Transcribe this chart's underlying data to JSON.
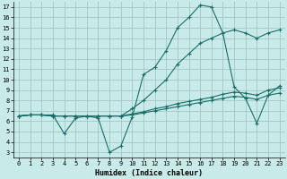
{
  "xlabel": "Humidex (Indice chaleur)",
  "xlim": [
    -0.5,
    23.5
  ],
  "ylim": [
    2.5,
    17.5
  ],
  "yticks": [
    3,
    4,
    5,
    6,
    7,
    8,
    9,
    10,
    11,
    12,
    13,
    14,
    15,
    16,
    17
  ],
  "xticks": [
    0,
    1,
    2,
    3,
    4,
    5,
    6,
    7,
    8,
    9,
    10,
    11,
    12,
    13,
    14,
    15,
    16,
    17,
    18,
    19,
    20,
    21,
    22,
    23
  ],
  "bg_color": "#c8eae8",
  "grid_color": "#9dbfbe",
  "line_color": "#1a6e6a",
  "series": [
    {
      "x": [
        0,
        1,
        2,
        3,
        4,
        5,
        6,
        7,
        8,
        9,
        10,
        11,
        12,
        13,
        14,
        15,
        16,
        17,
        18,
        19,
        20,
        21,
        22,
        23
      ],
      "y": [
        6.5,
        6.6,
        6.6,
        6.6,
        4.8,
        6.3,
        6.5,
        6.3,
        3.0,
        3.6,
        6.4,
        10.5,
        11.2,
        12.8,
        15.0,
        16.0,
        17.2,
        17.0,
        14.5,
        9.3,
        8.2,
        5.8,
        8.5,
        9.4
      ]
    },
    {
      "x": [
        0,
        1,
        2,
        3,
        4,
        5,
        6,
        7,
        8,
        9,
        10,
        11,
        12,
        13,
        14,
        15,
        16,
        17,
        18,
        19,
        20,
        21,
        22,
        23
      ],
      "y": [
        6.5,
        6.6,
        6.6,
        6.5,
        6.5,
        6.5,
        6.5,
        6.5,
        6.5,
        6.5,
        6.6,
        6.8,
        7.0,
        7.2,
        7.4,
        7.6,
        7.8,
        8.0,
        8.2,
        8.4,
        8.3,
        8.1,
        8.5,
        8.7
      ]
    },
    {
      "x": [
        0,
        1,
        2,
        3,
        4,
        5,
        6,
        7,
        8,
        9,
        10,
        11,
        12,
        13,
        14,
        15,
        16,
        17,
        18,
        19,
        20,
        21,
        22,
        23
      ],
      "y": [
        6.5,
        6.6,
        6.6,
        6.5,
        6.5,
        6.5,
        6.5,
        6.5,
        6.5,
        6.5,
        6.7,
        6.9,
        7.2,
        7.4,
        7.7,
        7.9,
        8.1,
        8.3,
        8.6,
        8.8,
        8.7,
        8.5,
        9.0,
        9.2
      ]
    },
    {
      "x": [
        0,
        1,
        2,
        3,
        4,
        5,
        6,
        7,
        8,
        9,
        10,
        11,
        12,
        13,
        14,
        15,
        16,
        17,
        18,
        19,
        20,
        21,
        22,
        23
      ],
      "y": [
        6.5,
        6.6,
        6.6,
        6.5,
        6.5,
        6.5,
        6.5,
        6.5,
        6.5,
        6.5,
        7.2,
        8.0,
        9.0,
        10.0,
        11.5,
        12.5,
        13.5,
        14.0,
        14.5,
        14.8,
        14.5,
        14.0,
        14.5,
        14.8
      ]
    }
  ]
}
